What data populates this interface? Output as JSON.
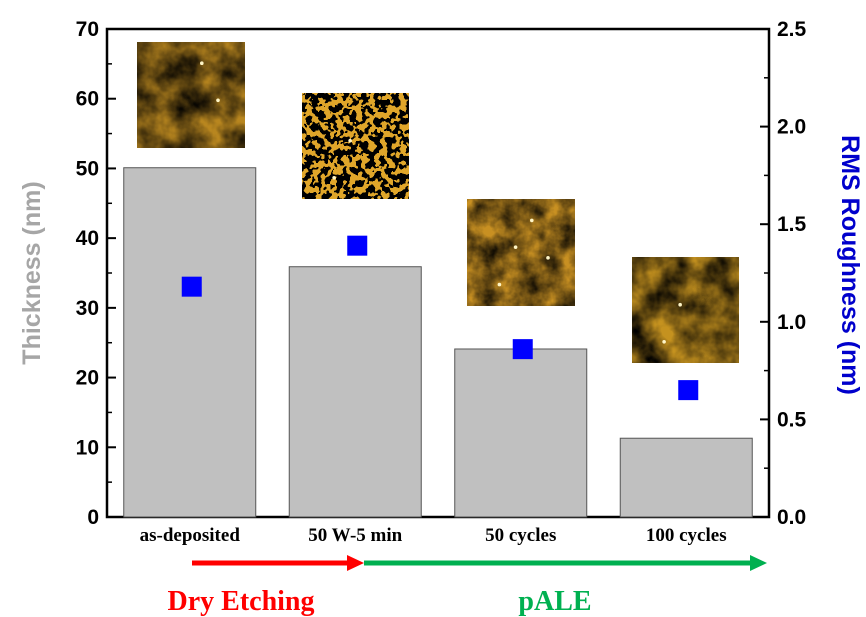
{
  "chart_data": {
    "type": "bar",
    "categories": [
      "as-deposited",
      "50 W-5 min",
      "50 cycles",
      "100 cycles"
    ],
    "series": [
      {
        "axis": "left",
        "kind": "bar",
        "values": [
          50.1,
          35.9,
          24.1,
          11.3
        ],
        "color": "#c0c0c0"
      },
      {
        "axis": "right",
        "kind": "scatter",
        "values": [
          1.18,
          1.39,
          0.86,
          0.65
        ],
        "color": "#0000ff"
      }
    ],
    "ylabel": "Thickness (nm)",
    "ylabel_color": "#a6a6a6",
    "ylim": [
      0,
      70
    ],
    "yticks": [
      0,
      10,
      20,
      30,
      40,
      50,
      60,
      70
    ],
    "y2label": "RMS Roughness (nm)",
    "y2label_color": "#0000cc",
    "y2lim": [
      0.0,
      2.5
    ],
    "y2ticks": [
      "0.0",
      "0.5",
      "1.0",
      "1.5",
      "2.0",
      "2.5"
    ],
    "grid": false,
    "insets": "AFM surface images above each bar",
    "process_arrows": [
      {
        "label": "Dry Etching",
        "color": "#ff0000",
        "from_category": 0,
        "to_category": 1
      },
      {
        "label": "pALE",
        "color": "#00b050",
        "from_category": 1,
        "to_category": 3
      }
    ]
  }
}
